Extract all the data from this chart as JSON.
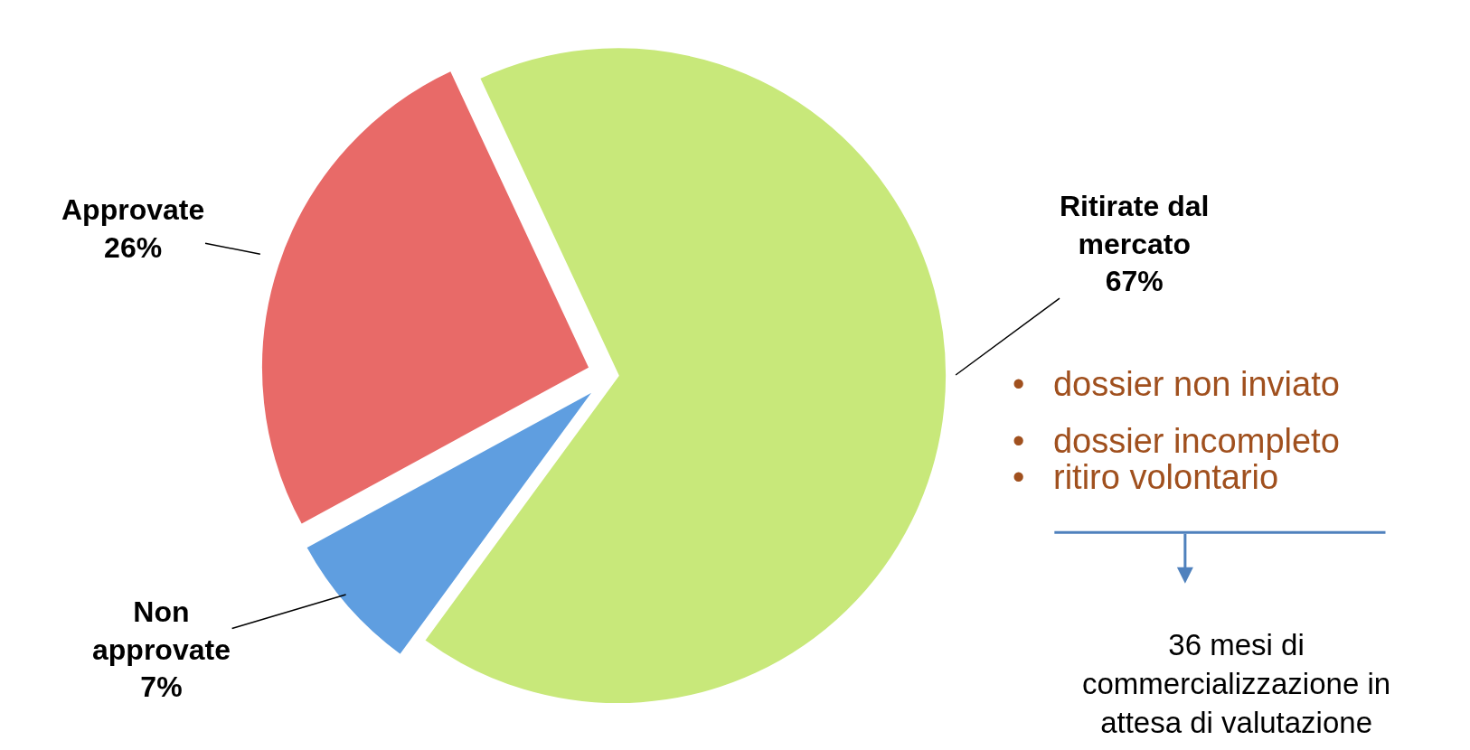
{
  "chart_data": {
    "type": "pie",
    "categories": [
      "Ritirate dal mercato",
      "Non approvate",
      "Approvate"
    ],
    "values": [
      67,
      7,
      26
    ],
    "value_labels": [
      "67%",
      "7%",
      "26%"
    ],
    "colors": [
      "#c8e87a",
      "#5f9ee0",
      "#e86a68"
    ],
    "legend": false,
    "annotations": [
      "•   dossier non inviato",
      "•   dossier incompleto",
      "•   ritiro volontario",
      "36 mesi di commercializzazione in attesa di valutazione"
    ]
  }
}
